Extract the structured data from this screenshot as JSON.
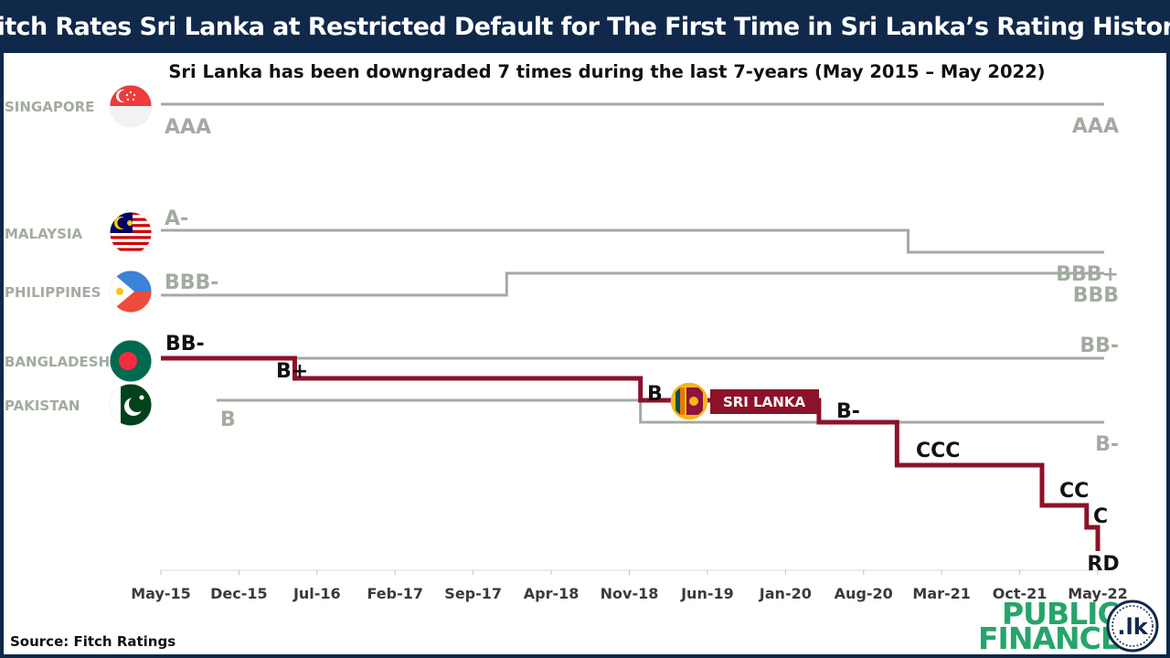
{
  "title": "Fitch Rates Sri Lanka at Restricted Default for The First Time in Sri Lanka’s Rating History",
  "source": "Source: Fitch Ratings",
  "brand": {
    "line1": "PUBLIC",
    "line2": "FINANCE",
    "badge": ".lk"
  },
  "colors": {
    "header": "#10284a",
    "grey": "#a3aba1",
    "srilanka": "#8b1228",
    "brand_green": "#27a46b",
    "brand_navy": "#10284a"
  },
  "chart_data": {
    "type": "line",
    "subtitle": "Sri Lanka has been downgraded 7 times during the last 7-years (May 2015 – May 2022)",
    "x_ticks": [
      "May-15",
      "Dec-15",
      "Jul-16",
      "Feb-17",
      "Sep-17",
      "Apr-18",
      "Nov-18",
      "Jun-19",
      "Jan-20",
      "Aug-20",
      "Mar-21",
      "Oct-21",
      "May-22"
    ],
    "x_range": [
      "2015-05",
      "2022-05"
    ],
    "rating_scale_top_to_bottom": [
      "AAA",
      "A-",
      "BBB+",
      "BBB",
      "BBB-",
      "BB-",
      "B+",
      "B",
      "B-",
      "CCC",
      "CC",
      "C",
      "RD"
    ],
    "series": [
      {
        "name": "SINGAPORE",
        "flag": "singapore-flag",
        "steps": [
          {
            "date": "2015-05",
            "rating": "AAA"
          }
        ],
        "labels": [
          {
            "text": "AAA",
            "pos": "start"
          },
          {
            "text": "AAA",
            "pos": "end"
          }
        ]
      },
      {
        "name": "MALAYSIA",
        "flag": "malaysia-flag",
        "steps": [
          {
            "date": "2015-05",
            "rating": "A-"
          },
          {
            "date": "2020-12",
            "rating": "BBB+"
          }
        ],
        "labels": [
          {
            "text": "A-",
            "pos": "start"
          },
          {
            "text": "BBB+",
            "pos": "end"
          }
        ]
      },
      {
        "name": "PHILIPPINES",
        "flag": "philippines-flag",
        "steps": [
          {
            "date": "2015-05",
            "rating": "BBB-"
          },
          {
            "date": "2017-12",
            "rating": "BBB"
          }
        ],
        "labels": [
          {
            "text": "BBB-",
            "pos": "start"
          },
          {
            "text": "BBB",
            "pos": "end"
          }
        ]
      },
      {
        "name": "BANGLADESH",
        "flag": "bangladesh-flag",
        "steps": [
          {
            "date": "2015-05",
            "rating": "BB-"
          }
        ],
        "labels": [
          {
            "text": "BB-",
            "pos": "end"
          }
        ]
      },
      {
        "name": "PAKISTAN",
        "flag": "pakistan-flag",
        "steps": [
          {
            "date": "2015-10",
            "rating": "B"
          },
          {
            "date": "2018-12",
            "rating": "B-"
          }
        ],
        "labels": [
          {
            "text": "B",
            "pos": "start"
          },
          {
            "text": "B-",
            "pos": "end"
          }
        ]
      },
      {
        "name": "SRI LANKA",
        "flag": "sri-lanka-flag",
        "highlight": true,
        "steps": [
          {
            "date": "2015-05",
            "rating": "BB-"
          },
          {
            "date": "2016-05",
            "rating": "B+"
          },
          {
            "date": "2018-12",
            "rating": "B"
          },
          {
            "date": "2020-04",
            "rating": "B-"
          },
          {
            "date": "2020-11",
            "rating": "CCC"
          },
          {
            "date": "2021-12",
            "rating": "CC"
          },
          {
            "date": "2022-04",
            "rating": "C"
          },
          {
            "date": "2022-05",
            "rating": "RD"
          }
        ],
        "labels": [
          "BB-",
          "B+",
          "B",
          "B-",
          "CCC",
          "CC",
          "C",
          "RD"
        ]
      }
    ]
  }
}
